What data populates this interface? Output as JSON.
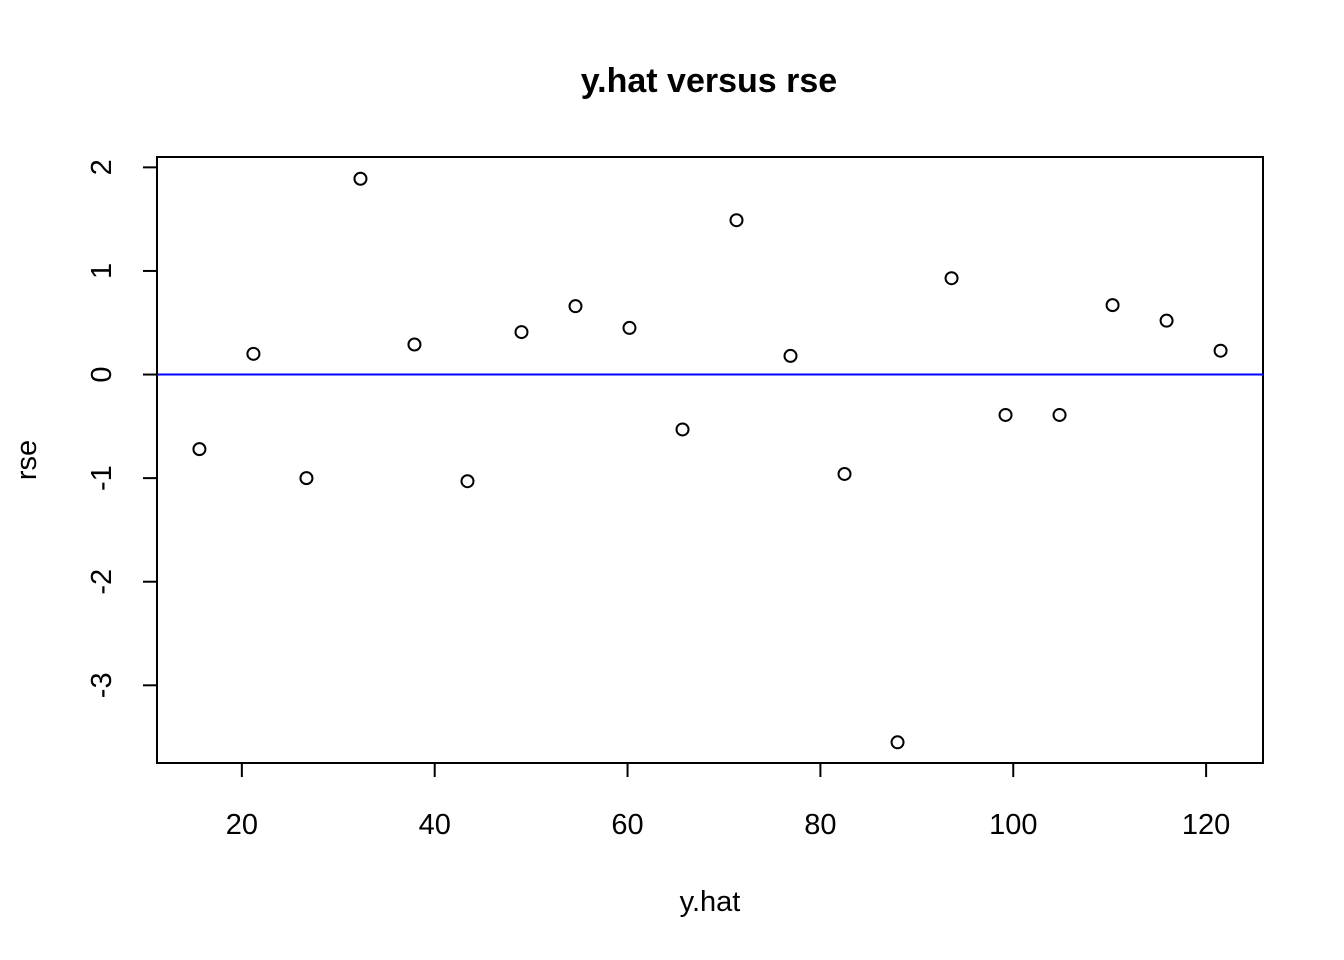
{
  "chart_data": {
    "type": "scatter",
    "title": "y.hat versus rse",
    "xlabel": "y.hat",
    "ylabel": "rse",
    "xlim": [
      11.2,
      125.9
    ],
    "ylim": [
      -3.75,
      2.1
    ],
    "xticks": [
      20,
      40,
      60,
      80,
      100,
      120
    ],
    "yticks": [
      2,
      1,
      0,
      -1,
      -2,
      -3
    ],
    "grid": false,
    "reference_line": {
      "y": 0,
      "color": "#0000ff"
    },
    "point_color": "#000000",
    "points": [
      {
        "x": 15.6,
        "y": -0.72
      },
      {
        "x": 21.2,
        "y": 0.2
      },
      {
        "x": 26.7,
        "y": -1.0
      },
      {
        "x": 32.3,
        "y": 1.89
      },
      {
        "x": 37.9,
        "y": 0.29
      },
      {
        "x": 43.4,
        "y": -1.03
      },
      {
        "x": 49.0,
        "y": 0.41
      },
      {
        "x": 54.6,
        "y": 0.66
      },
      {
        "x": 60.2,
        "y": 0.45
      },
      {
        "x": 65.7,
        "y": -0.53
      },
      {
        "x": 71.3,
        "y": 1.49
      },
      {
        "x": 76.9,
        "y": 0.18
      },
      {
        "x": 82.5,
        "y": -0.96
      },
      {
        "x": 88.0,
        "y": -3.55
      },
      {
        "x": 93.6,
        "y": 0.93
      },
      {
        "x": 99.2,
        "y": -0.39
      },
      {
        "x": 104.8,
        "y": -0.39
      },
      {
        "x": 110.3,
        "y": 0.67
      },
      {
        "x": 115.9,
        "y": 0.52
      },
      {
        "x": 121.5,
        "y": 0.23
      }
    ]
  }
}
